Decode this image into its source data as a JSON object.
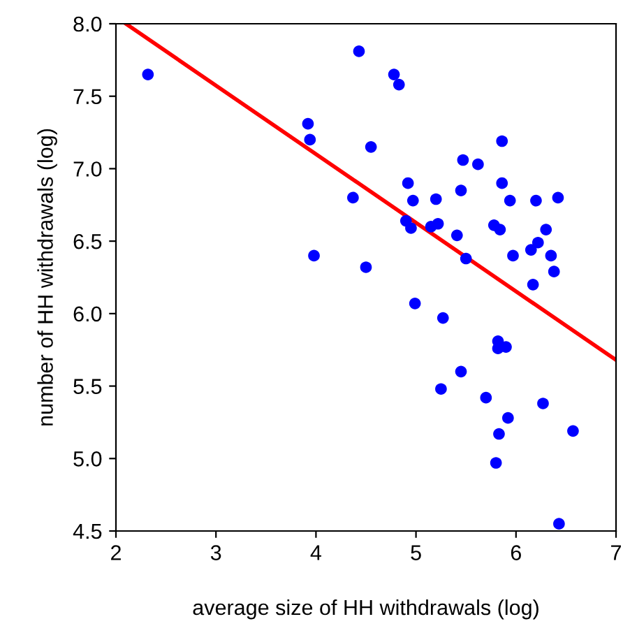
{
  "chart_data": {
    "type": "scatter",
    "xlabel": "average size of HH withdrawals (log)",
    "ylabel": "number of HH withdrawals (log)",
    "xlim": [
      2,
      7
    ],
    "ylim": [
      4.5,
      8.0
    ],
    "xticks": [
      2,
      3,
      4,
      5,
      6,
      7
    ],
    "yticks": [
      {
        "value": 4.5,
        "label": "4.5"
      },
      {
        "value": 5.0,
        "label": "5.0"
      },
      {
        "value": 5.5,
        "label": "5.5"
      },
      {
        "value": 6.0,
        "label": "6.0"
      },
      {
        "value": 6.5,
        "label": "6.5"
      },
      {
        "value": 7.0,
        "label": "7.0"
      },
      {
        "value": 7.5,
        "label": "7.5"
      },
      {
        "value": 8.0,
        "label": "8.0"
      }
    ],
    "grid": false,
    "legend": false,
    "series": [
      {
        "color": "#0000ff",
        "marker": "circle",
        "x": [
          2.32,
          3.92,
          3.94,
          3.98,
          4.37,
          4.43,
          4.5,
          4.55,
          4.78,
          4.83,
          4.9,
          4.92,
          4.95,
          4.97,
          4.99,
          5.15,
          5.2,
          5.22,
          5.25,
          5.27,
          5.41,
          5.45,
          5.47,
          5.45,
          5.5,
          5.62,
          5.7,
          5.78,
          5.8,
          5.82,
          5.82,
          5.83,
          5.84,
          5.86,
          5.86,
          5.9,
          5.92,
          5.94,
          5.97,
          6.15,
          6.17,
          6.2,
          6.22,
          6.27,
          6.3,
          6.35,
          6.38,
          6.42,
          6.43,
          6.57
        ],
        "values": [
          7.65,
          7.31,
          7.2,
          6.4,
          6.8,
          7.81,
          6.32,
          7.15,
          7.65,
          7.58,
          6.64,
          6.9,
          6.59,
          6.78,
          6.07,
          6.6,
          6.79,
          6.62,
          5.48,
          5.97,
          6.54,
          6.85,
          7.06,
          5.6,
          6.38,
          7.03,
          5.42,
          6.61,
          4.97,
          5.81,
          5.76,
          5.17,
          6.58,
          7.19,
          6.9,
          5.77,
          5.28,
          6.78,
          6.4,
          6.44,
          6.2,
          6.78,
          6.49,
          5.38,
          6.58,
          6.4,
          6.29,
          6.8,
          4.55,
          5.19
        ]
      },
      {
        "type": "line",
        "color": "#ff0000",
        "marker": "none",
        "line_style": "solid",
        "x": [
          2.1,
          7.0
        ],
        "values": [
          8.0,
          5.68
        ]
      }
    ]
  }
}
